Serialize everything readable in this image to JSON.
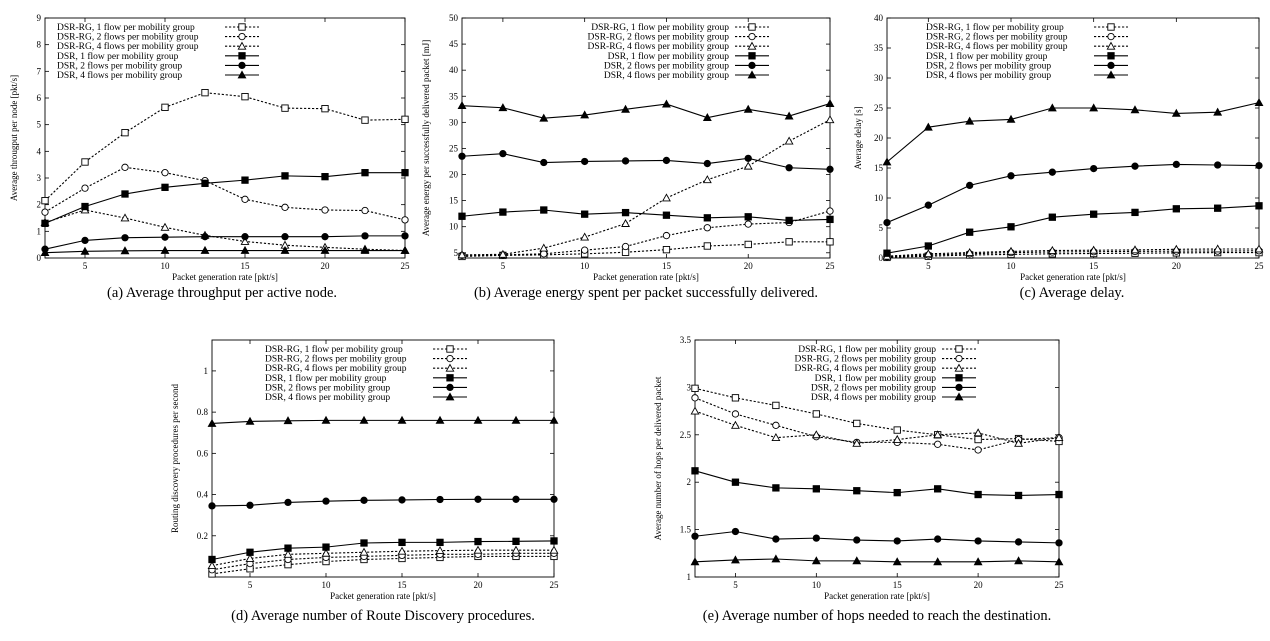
{
  "chart_data": [
    {
      "type": "line",
      "caption": "(a) Average throughput per active node.",
      "xlabel": "Packet generation rate [pkt/s]",
      "ylabel": "Average througput per node [pkt/s]",
      "xlim": [
        2.5,
        25
      ],
      "ylim": [
        0,
        9
      ],
      "xticks": [
        5,
        10,
        15,
        20,
        25
      ],
      "yticks": [
        0,
        1,
        2,
        3,
        4,
        5,
        6,
        7,
        8,
        9
      ],
      "legend_position": "top-left",
      "x": [
        2.5,
        5,
        7.5,
        10,
        12.5,
        15,
        17.5,
        20,
        22.5,
        25
      ],
      "series": [
        {
          "name": "DSR-RG, 1 flow per mobility group",
          "marker": "square-open",
          "dashed": true,
          "values": [
            2.15,
            3.6,
            4.7,
            5.65,
            6.2,
            6.05,
            5.62,
            5.6,
            5.17,
            5.2
          ]
        },
        {
          "name": "DSR-RG, 2 flows per mobility group",
          "marker": "circle-open",
          "dashed": true,
          "values": [
            1.72,
            2.62,
            3.4,
            3.2,
            2.9,
            2.2,
            1.9,
            1.8,
            1.78,
            1.43
          ]
        },
        {
          "name": "DSR-RG, 4 flows per mobility group",
          "marker": "triangle-open",
          "dashed": true,
          "values": [
            1.33,
            1.8,
            1.5,
            1.15,
            0.85,
            0.62,
            0.48,
            0.4,
            0.33,
            0.28
          ]
        },
        {
          "name": "DSR, 1 flow per mobility group",
          "marker": "square-filled",
          "dashed": false,
          "values": [
            1.3,
            1.93,
            2.4,
            2.65,
            2.8,
            2.92,
            3.08,
            3.05,
            3.2,
            3.2
          ]
        },
        {
          "name": "DSR, 2 flows per mobility group",
          "marker": "circle-filled",
          "dashed": false,
          "values": [
            0.33,
            0.66,
            0.76,
            0.78,
            0.8,
            0.8,
            0.8,
            0.8,
            0.83,
            0.83
          ]
        },
        {
          "name": "DSR, 4 flows per mobility group",
          "marker": "triangle-filled",
          "dashed": false,
          "values": [
            0.2,
            0.25,
            0.27,
            0.28,
            0.28,
            0.28,
            0.28,
            0.28,
            0.28,
            0.28
          ]
        }
      ]
    },
    {
      "type": "line",
      "caption": "(b) Average energy spent per packet successfully delivered.",
      "xlabel": "Packet generation rate [pkt/s]",
      "ylabel": "Average energy per successfully delivered packet [mJ]",
      "xlim": [
        2.5,
        25
      ],
      "ylim": [
        4,
        50
      ],
      "xticks": [
        5,
        10,
        15,
        20,
        25
      ],
      "yticks": [
        5,
        10,
        15,
        20,
        25,
        30,
        35,
        40,
        45,
        50
      ],
      "legend_position": "top-right",
      "x": [
        2.5,
        5,
        7.5,
        10,
        12.5,
        15,
        17.5,
        20,
        22.5,
        25
      ],
      "series": [
        {
          "name": "DSR-RG, 1 flow per mobility group",
          "marker": "square-open",
          "dashed": true,
          "values": [
            4.3,
            4.5,
            4.6,
            4.8,
            5.1,
            5.6,
            6.3,
            6.6,
            7.1,
            7.1
          ]
        },
        {
          "name": "DSR-RG, 2 flows per mobility group",
          "marker": "circle-open",
          "dashed": true,
          "values": [
            4.5,
            4.6,
            4.8,
            5.5,
            6.2,
            8.3,
            9.8,
            10.5,
            10.8,
            13.0
          ]
        },
        {
          "name": "DSR-RG, 4 flows per mobility group",
          "marker": "triangle-open",
          "dashed": true,
          "values": [
            4.6,
            4.7,
            5.9,
            8.0,
            10.6,
            15.5,
            19.0,
            21.6,
            26.4,
            30.5
          ]
        },
        {
          "name": "DSR, 1 flow per mobility group",
          "marker": "square-filled",
          "dashed": false,
          "values": [
            12.0,
            12.8,
            13.2,
            12.4,
            12.7,
            12.2,
            11.7,
            11.9,
            11.2,
            11.4
          ]
        },
        {
          "name": "DSR, 2 flows per mobility group",
          "marker": "circle-filled",
          "dashed": false,
          "values": [
            23.5,
            24.0,
            22.3,
            22.5,
            22.6,
            22.7,
            22.1,
            23.1,
            21.3,
            21.0
          ]
        },
        {
          "name": "DSR, 4 flows per mobility group",
          "marker": "triangle-filled",
          "dashed": false,
          "values": [
            33.2,
            32.8,
            30.8,
            31.4,
            32.5,
            33.5,
            30.9,
            32.5,
            31.2,
            33.6
          ]
        }
      ]
    },
    {
      "type": "line",
      "caption": "(c) Average delay.",
      "xlabel": "Packet generation rate [pkt/s]",
      "ylabel": "Average delay [s]",
      "xlim": [
        2.5,
        25
      ],
      "ylim": [
        0,
        40
      ],
      "xticks": [
        5,
        10,
        15,
        20,
        25
      ],
      "yticks": [
        0,
        5,
        10,
        15,
        20,
        25,
        30,
        35,
        40
      ],
      "legend_position": "top-left",
      "x": [
        2.5,
        5,
        7.5,
        10,
        12.5,
        15,
        17.5,
        20,
        22.5,
        25
      ],
      "series": [
        {
          "name": "DSR-RG, 1 flow per mobility group",
          "marker": "square-open",
          "dashed": true,
          "values": [
            0.1,
            0.3,
            0.5,
            0.6,
            0.7,
            0.75,
            0.8,
            0.85,
            0.9,
            0.9
          ]
        },
        {
          "name": "DSR-RG, 2 flows per mobility group",
          "marker": "circle-open",
          "dashed": true,
          "values": [
            0.2,
            0.5,
            0.7,
            0.9,
            1.0,
            1.05,
            1.1,
            1.15,
            1.15,
            1.2
          ]
        },
        {
          "name": "DSR-RG, 4 flows per mobility group",
          "marker": "triangle-open",
          "dashed": true,
          "values": [
            0.3,
            0.7,
            0.9,
            1.1,
            1.25,
            1.3,
            1.35,
            1.45,
            1.5,
            1.5
          ]
        },
        {
          "name": "DSR, 1 flow per mobility group",
          "marker": "square-filled",
          "dashed": false,
          "values": [
            0.8,
            2.0,
            4.3,
            5.2,
            6.8,
            7.3,
            7.6,
            8.2,
            8.3,
            8.7
          ]
        },
        {
          "name": "DSR, 2 flows per mobility group",
          "marker": "circle-filled",
          "dashed": false,
          "values": [
            5.9,
            8.8,
            12.1,
            13.7,
            14.3,
            14.9,
            15.3,
            15.6,
            15.5,
            15.4
          ]
        },
        {
          "name": "DSR, 4 flows per mobility group",
          "marker": "triangle-filled",
          "dashed": false,
          "values": [
            16.0,
            21.8,
            22.8,
            23.1,
            25.0,
            25.0,
            24.7,
            24.1,
            24.3,
            25.9
          ]
        }
      ]
    },
    {
      "type": "line",
      "caption": "(d) Average number of Route Discovery procedures.",
      "xlabel": "Packet generation rate [pkt/s]",
      "ylabel": "Routing discovery procedures per second",
      "xlim": [
        2.5,
        25
      ],
      "ylim": [
        0,
        1.15
      ],
      "xticks": [
        5,
        10,
        15,
        20,
        25
      ],
      "yticks": [
        0.2,
        0.4,
        0.6,
        0.8,
        1
      ],
      "legend_position": "top-left",
      "x": [
        2.5,
        5,
        7.5,
        10,
        12.5,
        15,
        17.5,
        20,
        22.5,
        25
      ],
      "series": [
        {
          "name": "DSR-RG, 1 flow per mobility group",
          "marker": "square-open",
          "dashed": true,
          "values": [
            0.015,
            0.04,
            0.06,
            0.075,
            0.085,
            0.09,
            0.095,
            0.1,
            0.1,
            0.1
          ]
        },
        {
          "name": "DSR-RG, 2 flows per mobility group",
          "marker": "circle-open",
          "dashed": true,
          "values": [
            0.035,
            0.065,
            0.085,
            0.095,
            0.1,
            0.105,
            0.11,
            0.11,
            0.115,
            0.115
          ]
        },
        {
          "name": "DSR-RG, 4 flows per mobility group",
          "marker": "triangle-open",
          "dashed": true,
          "values": [
            0.055,
            0.09,
            0.11,
            0.115,
            0.12,
            0.125,
            0.128,
            0.13,
            0.13,
            0.13
          ]
        },
        {
          "name": "DSR, 1 flow per mobility group",
          "marker": "square-filled",
          "dashed": false,
          "values": [
            0.085,
            0.12,
            0.14,
            0.145,
            0.165,
            0.168,
            0.168,
            0.172,
            0.173,
            0.175
          ]
        },
        {
          "name": "DSR, 2 flows per mobility group",
          "marker": "circle-filled",
          "dashed": false,
          "values": [
            0.345,
            0.348,
            0.362,
            0.368,
            0.372,
            0.374,
            0.376,
            0.377,
            0.377,
            0.377
          ]
        },
        {
          "name": "DSR, 4 flows per mobility group",
          "marker": "triangle-filled",
          "dashed": false,
          "values": [
            0.745,
            0.755,
            0.758,
            0.76,
            0.76,
            0.76,
            0.76,
            0.76,
            0.76,
            0.76
          ]
        }
      ]
    },
    {
      "type": "line",
      "caption": "(e) Average number of hops needed to reach the destination.",
      "xlabel": "Packet generation rate [pkt/s]",
      "ylabel": "Average number of hops per delivered packet",
      "xlim": [
        2.5,
        25
      ],
      "ylim": [
        1,
        3.5
      ],
      "xticks": [
        5,
        10,
        15,
        20,
        25
      ],
      "yticks": [
        1,
        1.5,
        2,
        2.5,
        3,
        3.5
      ],
      "legend_position": "top-right",
      "x": [
        2.5,
        5,
        7.5,
        10,
        12.5,
        15,
        17.5,
        20,
        22.5,
        25
      ],
      "series": [
        {
          "name": "DSR-RG, 1 flow per mobility group",
          "marker": "square-open",
          "dashed": true,
          "values": [
            2.99,
            2.89,
            2.81,
            2.72,
            2.62,
            2.55,
            2.5,
            2.45,
            2.46,
            2.43
          ]
        },
        {
          "name": "DSR-RG, 2 flows per mobility group",
          "marker": "circle-open",
          "dashed": true,
          "values": [
            2.89,
            2.72,
            2.6,
            2.48,
            2.42,
            2.42,
            2.4,
            2.34,
            2.45,
            2.47
          ]
        },
        {
          "name": "DSR-RG, 4 flows per mobility group",
          "marker": "triangle-open",
          "dashed": true,
          "values": [
            2.75,
            2.6,
            2.47,
            2.5,
            2.41,
            2.45,
            2.5,
            2.52,
            2.41,
            2.47
          ]
        },
        {
          "name": "DSR, 1 flow per mobility group",
          "marker": "square-filled",
          "dashed": false,
          "values": [
            2.12,
            2.0,
            1.94,
            1.93,
            1.91,
            1.89,
            1.93,
            1.87,
            1.86,
            1.87
          ]
        },
        {
          "name": "DSR, 2 flows per mobility group",
          "marker": "circle-filled",
          "dashed": false,
          "values": [
            1.43,
            1.48,
            1.4,
            1.41,
            1.39,
            1.38,
            1.4,
            1.38,
            1.37,
            1.36
          ]
        },
        {
          "name": "DSR, 4 flows per mobility group",
          "marker": "triangle-filled",
          "dashed": false,
          "values": [
            1.16,
            1.18,
            1.19,
            1.17,
            1.17,
            1.16,
            1.16,
            1.16,
            1.17,
            1.16
          ]
        }
      ]
    }
  ]
}
